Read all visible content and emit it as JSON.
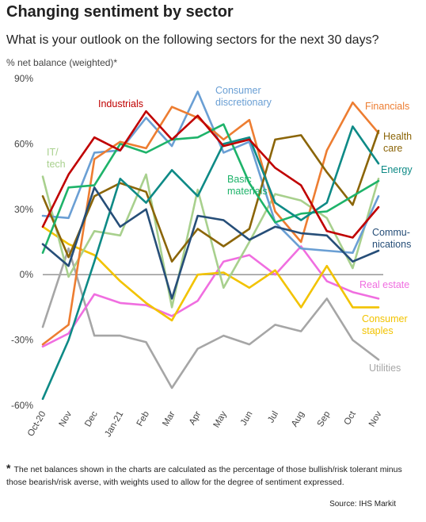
{
  "title": "Changing sentiment by sector",
  "subtitle": "What is your outlook on the following sectors for the next 30 days?",
  "units_label": "% net balance (weighted)*",
  "footnote_star": "*",
  "footnote": "The net balances shown in the charts are calculated as the percentage of those bullish/risk tolerant minus those bearish/risk averse, with weights used to allow for the degree of sentiment expressed.",
  "source": "Source: IHS Markit",
  "chart_data": {
    "type": "line",
    "ylim": [
      -60,
      90
    ],
    "yticks": [
      90,
      60,
      30,
      0,
      -30,
      -60
    ],
    "ytick_labels": [
      "90%",
      "60%",
      "30%",
      "0%",
      "-30%",
      "-60%"
    ],
    "categories": [
      "Oct-20",
      "Nov",
      "Dec",
      "Jan-21",
      "Feb",
      "Mar",
      "Apr",
      "May",
      "Jun",
      "Jul",
      "Aug",
      "Sep",
      "Oct",
      "Nov"
    ],
    "grid": false,
    "zero_line": true,
    "series": [
      {
        "name": "Utilities",
        "color": "#a6a6a6",
        "label_lines": [
          "Utilities"
        ],
        "values": [
          -24,
          12,
          -28,
          -28,
          -31,
          -52,
          -34,
          -28,
          -32,
          -23,
          -26,
          -11,
          -30,
          -39
        ]
      },
      {
        "name": "Real estate",
        "color": "#f06ee0",
        "label_lines": [
          "Real estate"
        ],
        "values": [
          -33,
          -27,
          -9,
          -13,
          -14,
          -19,
          -12,
          6,
          9,
          0,
          13,
          -3,
          -8,
          -11
        ]
      },
      {
        "name": "Consumer staples",
        "color": "#f2c300",
        "label_lines": [
          "Consumer",
          "staples"
        ],
        "values": [
          22,
          14,
          9,
          -3,
          -13,
          -21,
          0,
          1,
          -6,
          2,
          -15,
          4,
          -15,
          -15
        ]
      },
      {
        "name": "IT/tech",
        "color": "#a8d08d",
        "label_lines": [
          "IT/",
          "tech"
        ],
        "values": [
          45,
          -1,
          20,
          18,
          46,
          -15,
          39,
          -6,
          15,
          37,
          34,
          26,
          3,
          44
        ]
      },
      {
        "name": "Consumer discretionary",
        "color": "#6a9fd4",
        "label_lines": [
          "Consumer",
          "discretionary"
        ],
        "values": [
          27,
          26,
          56,
          57,
          72,
          59,
          84,
          56,
          61,
          24,
          12,
          11,
          10,
          36
        ]
      },
      {
        "name": "Financials",
        "color": "#ed7d31",
        "label_lines": [
          "Financials"
        ],
        "values": [
          -32,
          -23,
          53,
          61,
          58,
          77,
          72,
          62,
          71,
          29,
          15,
          57,
          79,
          65
        ]
      },
      {
        "name": "Health care",
        "color": "#8b6508",
        "label_lines": [
          "Health",
          "care"
        ],
        "values": [
          36,
          8,
          36,
          42,
          38,
          6,
          21,
          13,
          21,
          62,
          64,
          47,
          32,
          66
        ]
      },
      {
        "name": "Basic materials",
        "color": "#1eb36a",
        "label_lines": [
          "Basic",
          "materials"
        ],
        "values": [
          10,
          40,
          41,
          60,
          56,
          62,
          63,
          69,
          42,
          24,
          28,
          29,
          36,
          43
        ]
      },
      {
        "name": "Energy",
        "color": "#0e8a86",
        "label_lines": [
          "Energy"
        ],
        "values": [
          -57,
          -30,
          6,
          44,
          33,
          48,
          36,
          60,
          63,
          33,
          25,
          33,
          68,
          51
        ]
      },
      {
        "name": "Communications",
        "color": "#264e78",
        "label_lines": [
          "Commu-",
          "nications"
        ],
        "values": [
          14,
          4,
          40,
          22,
          30,
          -11,
          27,
          25,
          16,
          22,
          19,
          18,
          6,
          11
        ]
      },
      {
        "name": "Industrials",
        "color": "#c00000",
        "label_lines": [
          "Industrials"
        ],
        "values": [
          22,
          46,
          63,
          57,
          75,
          62,
          73,
          59,
          62,
          49,
          41,
          20,
          17,
          31
        ]
      }
    ]
  }
}
